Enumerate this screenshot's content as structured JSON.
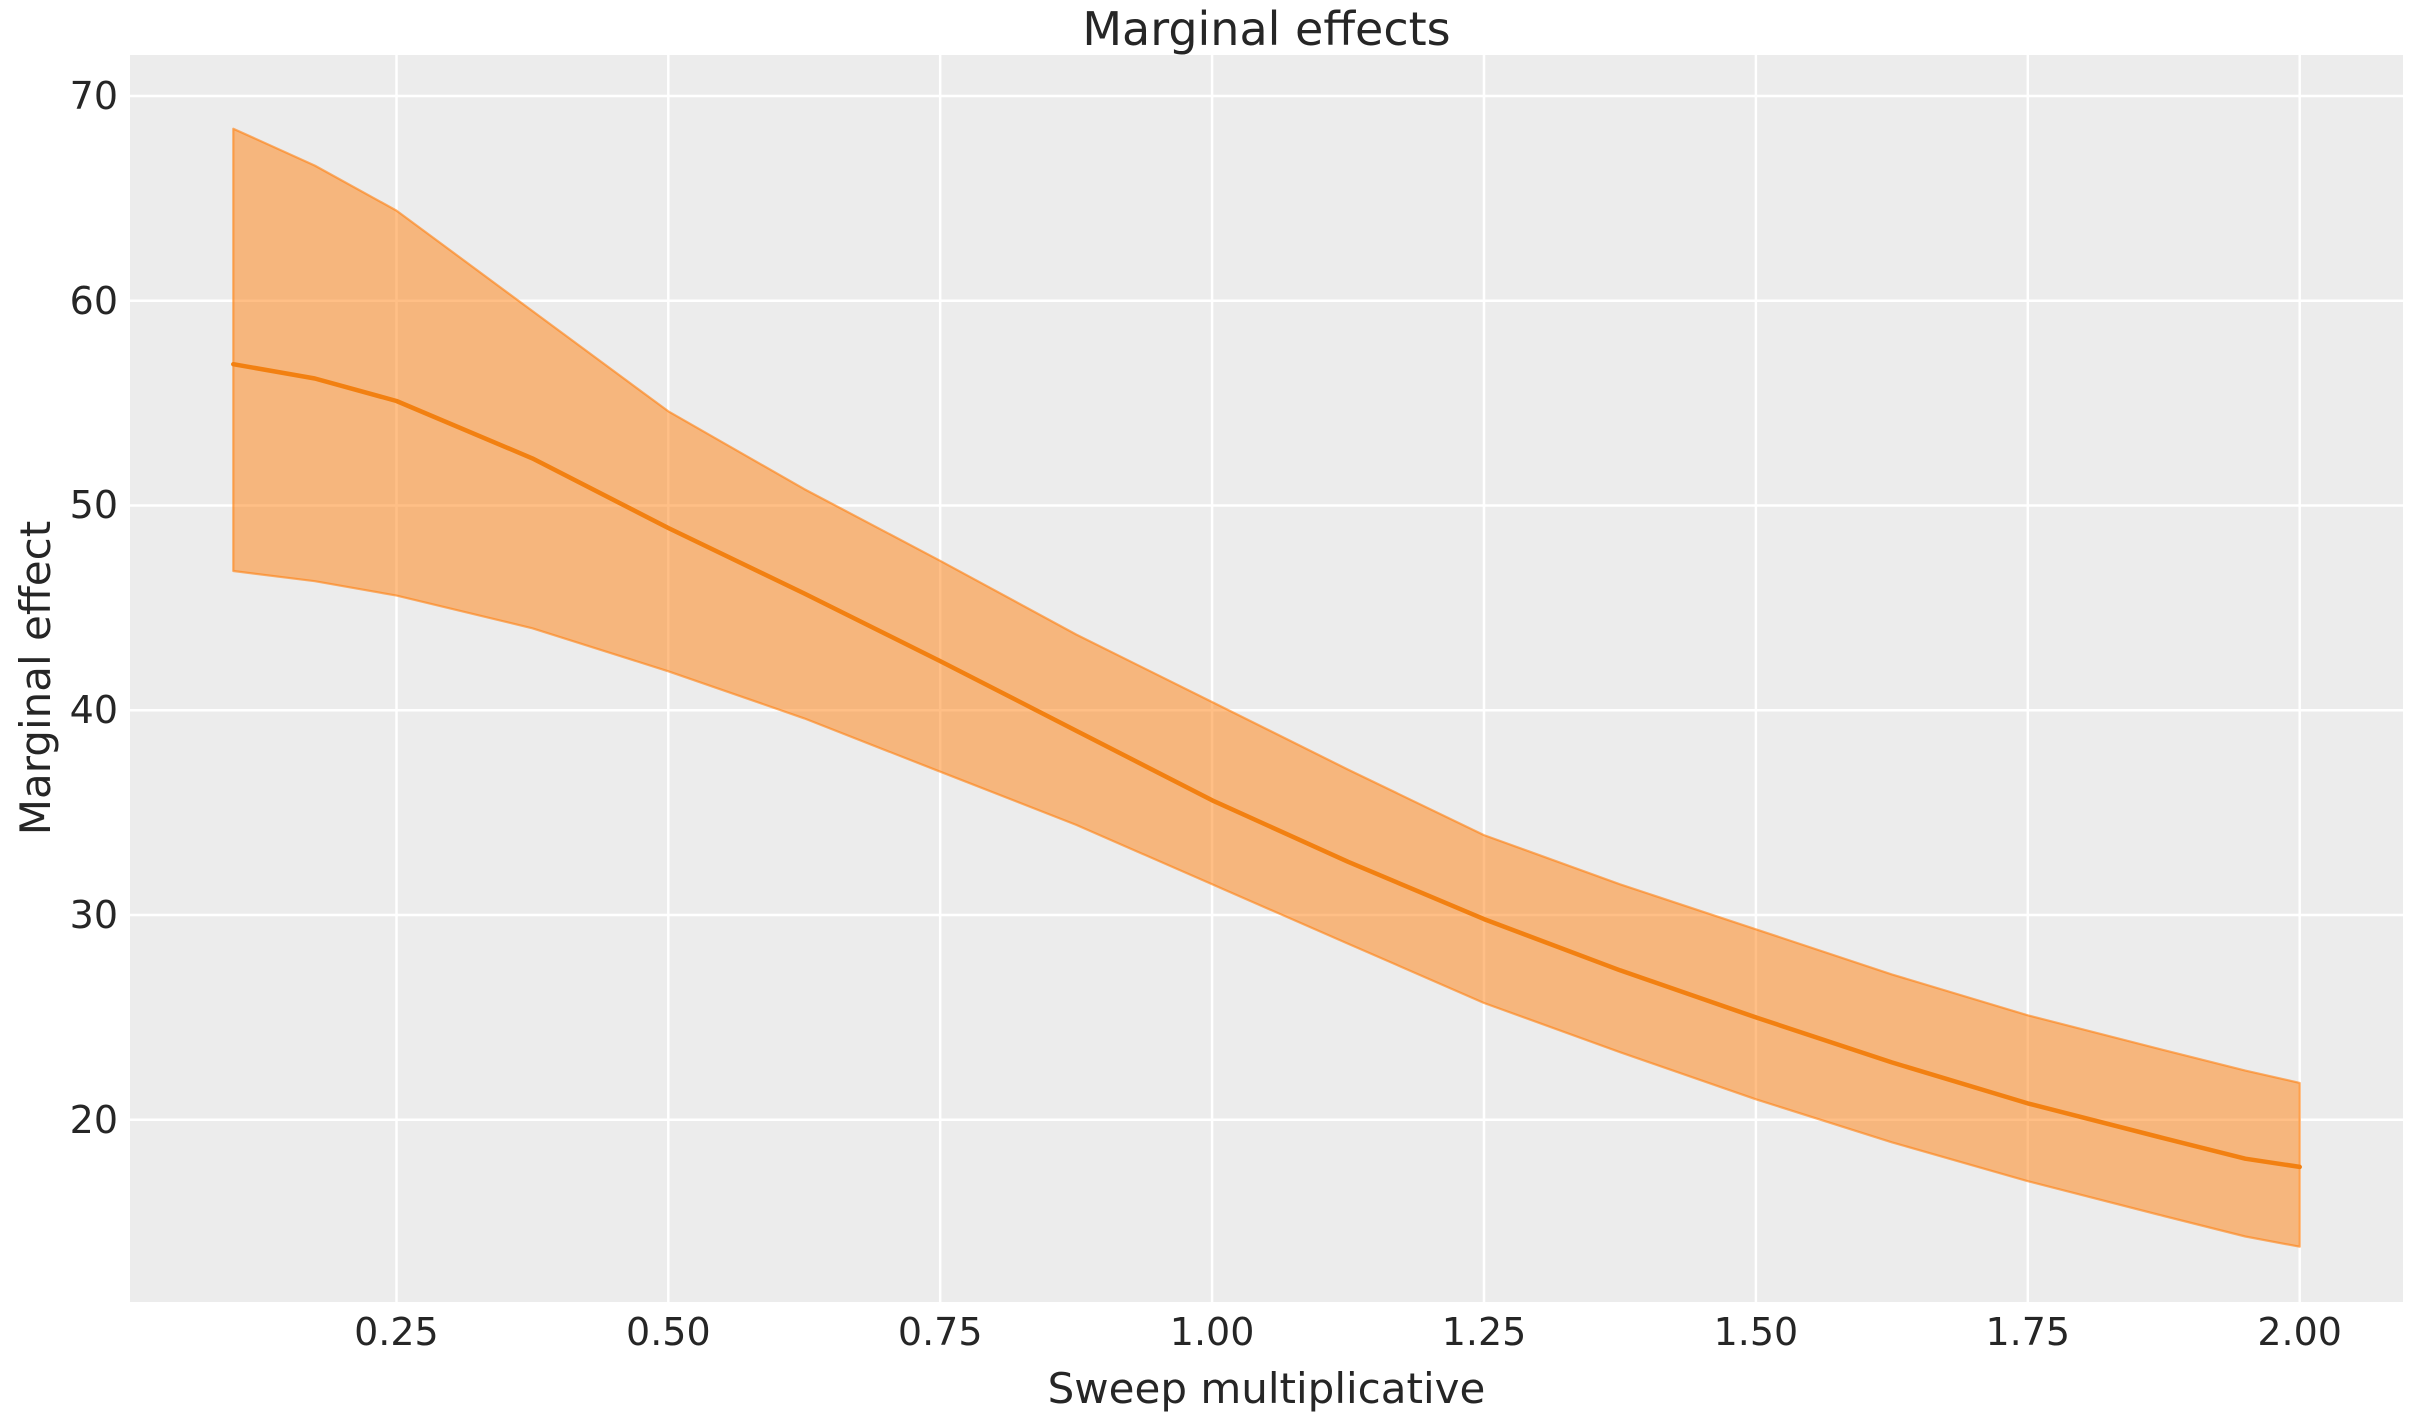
{
  "chart_data": {
    "type": "line",
    "title": "Marginal effects",
    "xlabel": "Sweep multiplicative",
    "ylabel": "Marginal effect",
    "grid": true,
    "legend": false,
    "xlim": [
      0.005,
      2.095
    ],
    "ylim": [
      11.1,
      72.0
    ],
    "x_ticks": {
      "values": [
        0.25,
        0.5,
        0.75,
        1.0,
        1.25,
        1.5,
        1.75,
        2.0
      ],
      "labels": [
        "0.25",
        "0.50",
        "0.75",
        "1.00",
        "1.25",
        "1.50",
        "1.75",
        "2.00"
      ]
    },
    "y_ticks": {
      "values": [
        70,
        60,
        50,
        40,
        30,
        20
      ],
      "labels": [
        "70",
        "60",
        "50",
        "40",
        "30",
        "20"
      ]
    },
    "x": [
      0.1,
      0.175,
      0.25,
      0.375,
      0.5,
      0.625,
      0.75,
      0.875,
      1.0,
      1.125,
      1.25,
      1.375,
      1.5,
      1.625,
      1.75,
      1.875,
      1.95,
      2.0
    ],
    "series": [
      {
        "name": "mean",
        "values": [
          56.9,
          56.2,
          55.1,
          52.3,
          48.9,
          45.7,
          42.4,
          39.0,
          35.6,
          32.6,
          29.8,
          27.3,
          25.0,
          22.8,
          20.8,
          19.1,
          18.1,
          17.7
        ]
      }
    ],
    "band": {
      "name": "confidence-interval",
      "upper": [
        68.4,
        66.6,
        64.4,
        59.5,
        54.6,
        50.8,
        47.3,
        43.7,
        40.4,
        37.1,
        33.9,
        31.5,
        29.3,
        27.1,
        25.1,
        23.4,
        22.4,
        21.8
      ],
      "lower": [
        46.8,
        46.3,
        45.6,
        44.0,
        41.9,
        39.6,
        37.0,
        34.4,
        31.5,
        28.6,
        25.7,
        23.3,
        21.0,
        18.9,
        17.0,
        15.3,
        14.3,
        13.8
      ]
    },
    "colors": {
      "line": "#f28011",
      "band_fill": "#ff7f0e",
      "band_fill_opacity": 0.5,
      "band_edge": "#ff7f0e",
      "band_edge_opacity": 0.6,
      "axes_background": "#ececec",
      "grid": "#ffffff",
      "text": "#262626",
      "figure_background": "#ffffff"
    }
  }
}
